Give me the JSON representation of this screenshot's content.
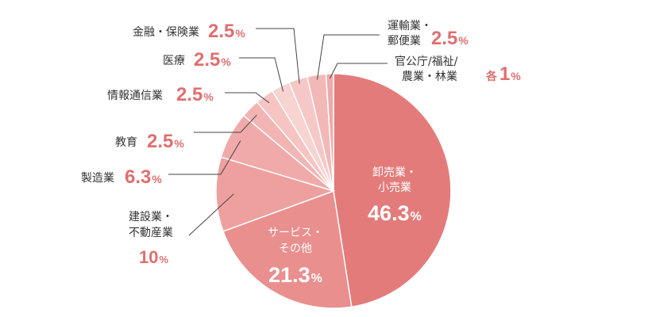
{
  "chart_data": {
    "type": "pie",
    "title": "",
    "unit": "%",
    "slices": [
      {
        "label": "卸売業・小売業",
        "value": 46.3,
        "display": "46.3",
        "color": "#e47b7b"
      },
      {
        "label": "サービス・その他",
        "value": 21.3,
        "display": "21.3",
        "color": "#e98f8e"
      },
      {
        "label": "建設業・不動産業",
        "value": 10,
        "display": "10",
        "color": "#eea09f"
      },
      {
        "label": "製造業",
        "value": 6.3,
        "display": "6.3",
        "color": "#f0aaa9"
      },
      {
        "label": "教育",
        "value": 2.5,
        "display": "2.5",
        "color": "#f2b5b4"
      },
      {
        "label": "情報通信業",
        "value": 2.5,
        "display": "2.5",
        "color": "#f5c4c3"
      },
      {
        "label": "医療",
        "value": 2.5,
        "display": "2.5",
        "color": "#f7d3d2"
      },
      {
        "label": "金融・保険業",
        "value": 2.5,
        "display": "2.5",
        "color": "#f5c8c7"
      },
      {
        "label": "運輸業・郵便業",
        "value": 2.5,
        "display": "2.5",
        "color": "#f1b8b7"
      },
      {
        "label": "官公庁/福祉/農業・林業",
        "value": 1,
        "display": "1",
        "prefix": "各",
        "color": "#eea9a8"
      }
    ]
  }
}
